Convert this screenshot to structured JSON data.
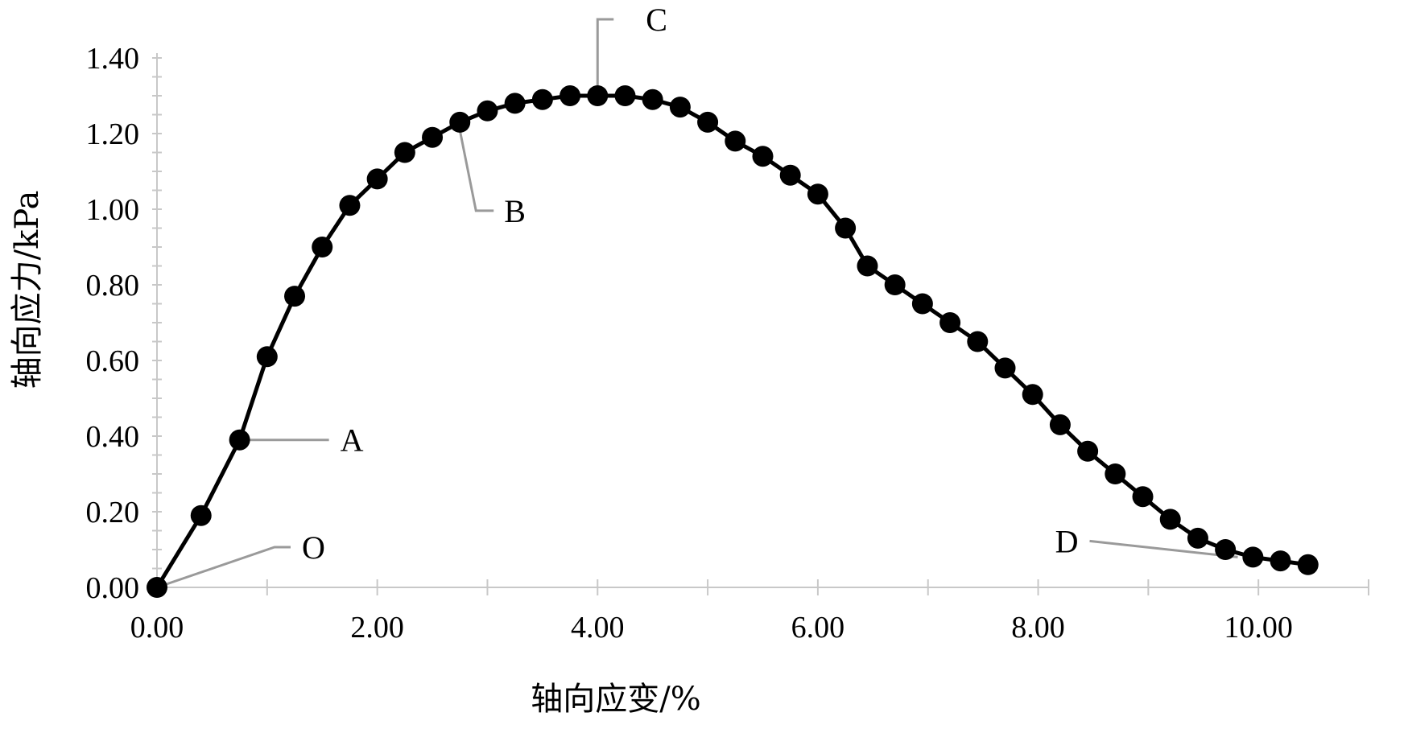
{
  "chart_data": {
    "type": "line",
    "xlabel": "轴向应变/%",
    "ylabel": "轴向应力/kPa",
    "xlim": [
      0,
      11
    ],
    "ylim": [
      0,
      1.4
    ],
    "x_ticks": [
      "0.00",
      "2.00",
      "4.00",
      "6.00",
      "8.00",
      "10.00"
    ],
    "y_ticks": [
      "0.00",
      "0.20",
      "0.40",
      "0.60",
      "0.80",
      "1.00",
      "1.20",
      "1.40"
    ],
    "grid": false,
    "series": [
      {
        "x": [
          0.0,
          0.4,
          0.75,
          1.0,
          1.25,
          1.5,
          1.75,
          2.0,
          2.25,
          2.5,
          2.75,
          3.0,
          3.25,
          3.5,
          3.75,
          4.0,
          4.25,
          4.5,
          4.75,
          5.0,
          5.25,
          5.5,
          5.75,
          6.0,
          6.25,
          6.45,
          6.7,
          6.95,
          7.2,
          7.45,
          7.7,
          7.95,
          8.2,
          8.45,
          8.7,
          8.95,
          9.2,
          9.45,
          9.7,
          9.95,
          10.2,
          10.45
        ],
        "y": [
          0.0,
          0.19,
          0.39,
          0.61,
          0.77,
          0.9,
          1.01,
          1.08,
          1.15,
          1.19,
          1.23,
          1.26,
          1.28,
          1.29,
          1.3,
          1.3,
          1.3,
          1.29,
          1.27,
          1.23,
          1.18,
          1.14,
          1.09,
          1.04,
          0.95,
          0.85,
          0.8,
          0.75,
          0.7,
          0.65,
          0.58,
          0.51,
          0.43,
          0.36,
          0.3,
          0.24,
          0.18,
          0.13,
          0.1,
          0.08,
          0.07,
          0.06
        ],
        "color": "#000000"
      }
    ],
    "annotations": [
      {
        "label": "O",
        "x": 0.0,
        "y": 0.0
      },
      {
        "label": "A",
        "x": 0.75,
        "y": 0.39
      },
      {
        "label": "B",
        "x": 2.75,
        "y": 1.23
      },
      {
        "label": "C",
        "x": 4.0,
        "y": 1.3
      },
      {
        "label": "D",
        "x": 9.9,
        "y": 0.08
      }
    ]
  }
}
